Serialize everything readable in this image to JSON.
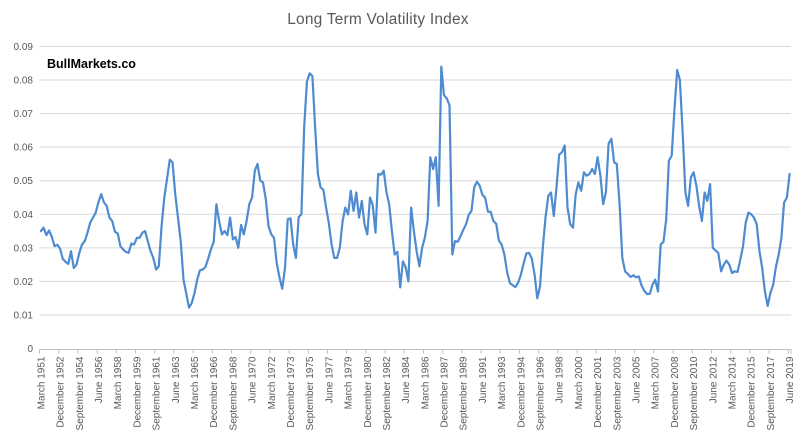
{
  "title": "Long Term Volatility Index",
  "watermark": "BullMarkets.co",
  "colors": {
    "line": "#4e8bd0",
    "title_text": "#595959",
    "axis_text": "#595959",
    "gridline": "#d9d9d9",
    "axis_line": "#bfbfbf",
    "background": "#ffffff"
  },
  "chart_data": {
    "type": "line",
    "title": "Long Term Volatility Index",
    "frequency": "quarterly",
    "x_start": "March 1951",
    "x_end": "June 2019",
    "x_label_every_n_points": 7,
    "x_labels": [
      "March 1951",
      "December 1952",
      "September 1954",
      "June 1956",
      "March 1958",
      "December 1959",
      "September 1961",
      "June 1963",
      "March 1965",
      "December 1966",
      "September 1968",
      "June 1970",
      "March 1972",
      "December 1973",
      "September 1975",
      "June 1977",
      "March 1979",
      "December 1980",
      "September 1982",
      "June 1984",
      "March 1986",
      "December 1987",
      "September 1989",
      "June 1991",
      "March 1993",
      "December 1994",
      "September 1996",
      "June 1998",
      "March 2000",
      "December 2001",
      "September 2003",
      "June 2005",
      "March 2007",
      "December 2008",
      "September 2010",
      "June 2012",
      "March 2014",
      "December 2015",
      "September 2017",
      "June 2019"
    ],
    "ylim": [
      0,
      0.09
    ],
    "ytick_step": 0.01,
    "y_tick_labels": [
      "0.09",
      "0.08",
      "0.07",
      "0.06",
      "0.05",
      "0.04",
      "0.03",
      "0.02",
      "0.01",
      "0"
    ],
    "grid": "horizontal",
    "legend": "none",
    "values": [
      0.035,
      0.036,
      0.0338,
      0.0352,
      0.0333,
      0.0305,
      0.0309,
      0.0297,
      0.0267,
      0.0258,
      0.0252,
      0.029,
      0.024,
      0.025,
      0.0285,
      0.031,
      0.032,
      0.0345,
      0.0375,
      0.039,
      0.0405,
      0.0437,
      0.046,
      0.0435,
      0.0425,
      0.039,
      0.038,
      0.0348,
      0.0343,
      0.0305,
      0.0295,
      0.0288,
      0.0285,
      0.0313,
      0.031,
      0.033,
      0.033,
      0.0345,
      0.035,
      0.032,
      0.029,
      0.027,
      0.0235,
      0.0245,
      0.0365,
      0.045,
      0.0505,
      0.0563,
      0.0555,
      0.0458,
      0.039,
      0.032,
      0.0205,
      0.0165,
      0.0122,
      0.0135,
      0.0165,
      0.0205,
      0.0233,
      0.0235,
      0.0243,
      0.0268,
      0.0295,
      0.0318,
      0.043,
      0.038,
      0.034,
      0.035,
      0.0338,
      0.039,
      0.0325,
      0.0332,
      0.03,
      0.0368,
      0.034,
      0.038,
      0.043,
      0.045,
      0.053,
      0.055,
      0.05,
      0.0495,
      0.0445,
      0.0365,
      0.034,
      0.033,
      0.0255,
      0.0212,
      0.0178,
      0.024,
      0.0385,
      0.0388,
      0.031,
      0.027,
      0.0392,
      0.04,
      0.066,
      0.0795,
      0.082,
      0.0812,
      0.066,
      0.052,
      0.048,
      0.0473,
      0.042,
      0.0372,
      0.031,
      0.027,
      0.027,
      0.03,
      0.038,
      0.042,
      0.04,
      0.047,
      0.041,
      0.0465,
      0.039,
      0.044,
      0.037,
      0.034,
      0.045,
      0.0428,
      0.0345,
      0.052,
      0.0518,
      0.053,
      0.0465,
      0.043,
      0.035,
      0.028,
      0.0288,
      0.0182,
      0.026,
      0.0242,
      0.02,
      0.042,
      0.035,
      0.029,
      0.0245,
      0.03,
      0.033,
      0.038,
      0.057,
      0.0535,
      0.057,
      0.0425,
      0.084,
      0.0755,
      0.0745,
      0.0725,
      0.028,
      0.032,
      0.0318,
      0.0335,
      0.0353,
      0.037,
      0.0398,
      0.041,
      0.048,
      0.0497,
      0.0485,
      0.0458,
      0.0449,
      0.0408,
      0.0407,
      0.038,
      0.0372,
      0.0322,
      0.031,
      0.028,
      0.0228,
      0.0195,
      0.0189,
      0.0183,
      0.0196,
      0.0219,
      0.0253,
      0.0283,
      0.0285,
      0.0268,
      0.022,
      0.015,
      0.0185,
      0.03,
      0.039,
      0.0455,
      0.0465,
      0.0395,
      0.048,
      0.0578,
      0.0585,
      0.0605,
      0.042,
      0.037,
      0.036,
      0.046,
      0.0495,
      0.047,
      0.0525,
      0.0515,
      0.052,
      0.0535,
      0.052,
      0.057,
      0.0515,
      0.043,
      0.0465,
      0.061,
      0.0625,
      0.0555,
      0.055,
      0.043,
      0.027,
      0.023,
      0.0222,
      0.0213,
      0.0218,
      0.0212,
      0.0215,
      0.0188,
      0.0172,
      0.0162,
      0.0163,
      0.019,
      0.0205,
      0.017,
      0.031,
      0.0318,
      0.0385,
      0.056,
      0.0575,
      0.071,
      0.083,
      0.08,
      0.064,
      0.0465,
      0.0425,
      0.051,
      0.0525,
      0.0485,
      0.0425,
      0.038,
      0.0465,
      0.044,
      0.049,
      0.03,
      0.0292,
      0.0285,
      0.023,
      0.025,
      0.0262,
      0.025,
      0.0225,
      0.023,
      0.0228,
      0.0265,
      0.0305,
      0.0375,
      0.0405,
      0.04,
      0.039,
      0.037,
      0.029,
      0.024,
      0.017,
      0.0127,
      0.0165,
      0.019,
      0.0243,
      0.028,
      0.033,
      0.0435,
      0.045,
      0.052
    ]
  }
}
